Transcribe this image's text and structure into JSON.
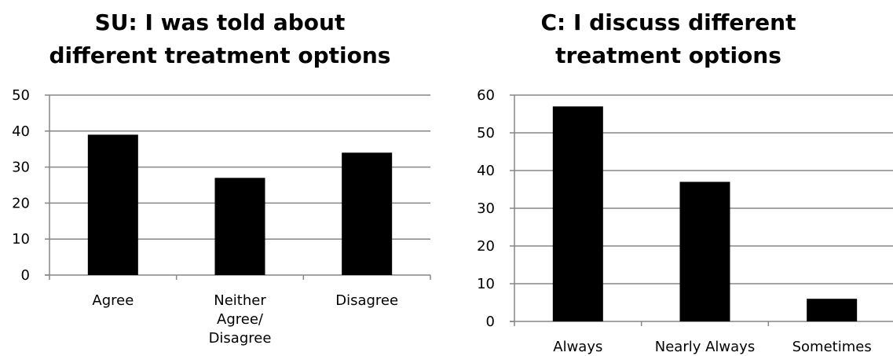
{
  "chart_data": [
    {
      "type": "bar",
      "title": "SU: I was told about\ndifferent treatment options",
      "categories": [
        "Agree",
        "Neither\nAgree/\nDisagree",
        "Disagree"
      ],
      "values": [
        39,
        27,
        34
      ],
      "ylim": [
        0,
        50
      ],
      "yticks": [
        0,
        10,
        20,
        30,
        40,
        50
      ],
      "grid": true,
      "legend": "none",
      "bar_color": "#000000",
      "grid_color": "#868686"
    },
    {
      "type": "bar",
      "title": "C: I discuss different\ntreatment options",
      "categories": [
        "Always",
        "Nearly Always",
        "Sometimes"
      ],
      "values": [
        57,
        37,
        6
      ],
      "ylim": [
        0,
        60
      ],
      "yticks": [
        0,
        10,
        20,
        30,
        40,
        50,
        60
      ],
      "grid": true,
      "legend": "none",
      "bar_color": "#000000",
      "grid_color": "#868686"
    }
  ]
}
